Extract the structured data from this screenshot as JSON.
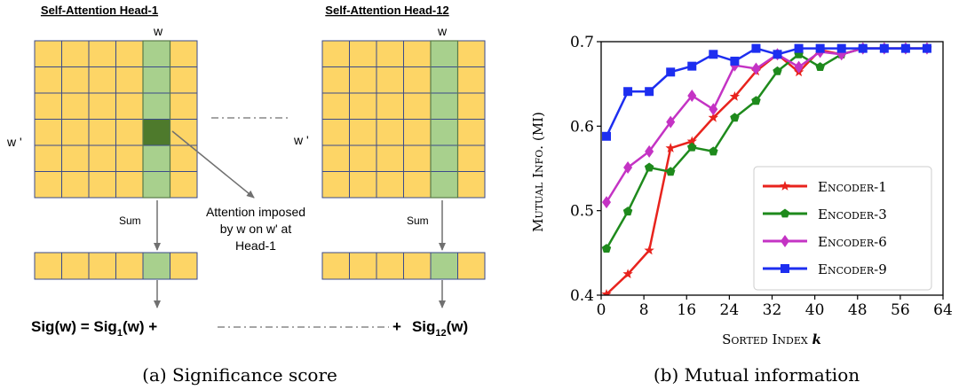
{
  "panel_a": {
    "head1_title": "Self-Attention Head-1",
    "head12_title": "Self-Attention Head-12",
    "w_label": "w",
    "wprime_label": "w '",
    "sum_label": "Sum",
    "annotation_line1": "Attention imposed",
    "annotation_line2": "by w on w' at",
    "annotation_line3": "Head-1",
    "eq_left": "Sig(w) = Sig",
    "eq_sub1": "1",
    "eq_mid": "(w) +",
    "eq_plus": "+",
    "eq_sig12": "Sig",
    "eq_sub12": "12",
    "eq_end": "(w)",
    "caption": "(a) Significance score",
    "colors": {
      "cell": "#fdd566",
      "cell_border": "#3a4a8c",
      "column": "#a8d08d",
      "highlight": "#4e7a2c",
      "line": "#707070"
    }
  },
  "panel_b": {
    "caption": "(b) Mutual information"
  },
  "chart_data": {
    "type": "line",
    "xlabel": "Sorted Index k",
    "ylabel": "Mutual Info. (MI)",
    "xlim": [
      0,
      64
    ],
    "ylim": [
      0.4,
      0.7
    ],
    "xticks": [
      "0",
      "8",
      "16",
      "24",
      "32",
      "40",
      "48",
      "56",
      "64"
    ],
    "yticks": [
      "0.4",
      "0.5",
      "0.6",
      "0.7"
    ],
    "legend_position": "bottom-right",
    "series": [
      {
        "name": "Encoder-1",
        "color": "#e8231d",
        "marker": "star",
        "x": [
          1,
          5,
          9,
          13,
          17,
          21,
          25,
          29,
          33,
          37,
          41,
          45,
          49,
          53,
          57,
          61
        ],
        "y": [
          0.401,
          0.425,
          0.453,
          0.574,
          0.582,
          0.61,
          0.635,
          0.665,
          0.685,
          0.664,
          0.69,
          0.685,
          0.692,
          0.692,
          0.692,
          0.692
        ]
      },
      {
        "name": "Encoder-3",
        "color": "#1e8a1c",
        "marker": "pentagon",
        "x": [
          1,
          5,
          9,
          13,
          17,
          21,
          25,
          29,
          33,
          37,
          41,
          45,
          49,
          53,
          57,
          61
        ],
        "y": [
          0.455,
          0.499,
          0.551,
          0.546,
          0.575,
          0.57,
          0.61,
          0.63,
          0.665,
          0.685,
          0.67,
          0.685,
          0.692,
          0.692,
          0.692,
          0.692
        ]
      },
      {
        "name": "Encoder-6",
        "color": "#c433c4",
        "marker": "diamond",
        "x": [
          1,
          5,
          9,
          13,
          17,
          21,
          25,
          29,
          33,
          37,
          41,
          45,
          49,
          53,
          57,
          61
        ],
        "y": [
          0.51,
          0.551,
          0.57,
          0.605,
          0.636,
          0.62,
          0.672,
          0.668,
          0.685,
          0.67,
          0.688,
          0.685,
          0.692,
          0.692,
          0.692,
          0.692
        ]
      },
      {
        "name": "Encoder-9",
        "color": "#1d2ef0",
        "marker": "square",
        "x": [
          1,
          5,
          9,
          13,
          17,
          21,
          25,
          29,
          33,
          37,
          41,
          45,
          49,
          53,
          57,
          61
        ],
        "y": [
          0.588,
          0.641,
          0.641,
          0.664,
          0.671,
          0.685,
          0.677,
          0.692,
          0.685,
          0.692,
          0.692,
          0.692,
          0.692,
          0.692,
          0.692,
          0.692
        ]
      }
    ]
  }
}
